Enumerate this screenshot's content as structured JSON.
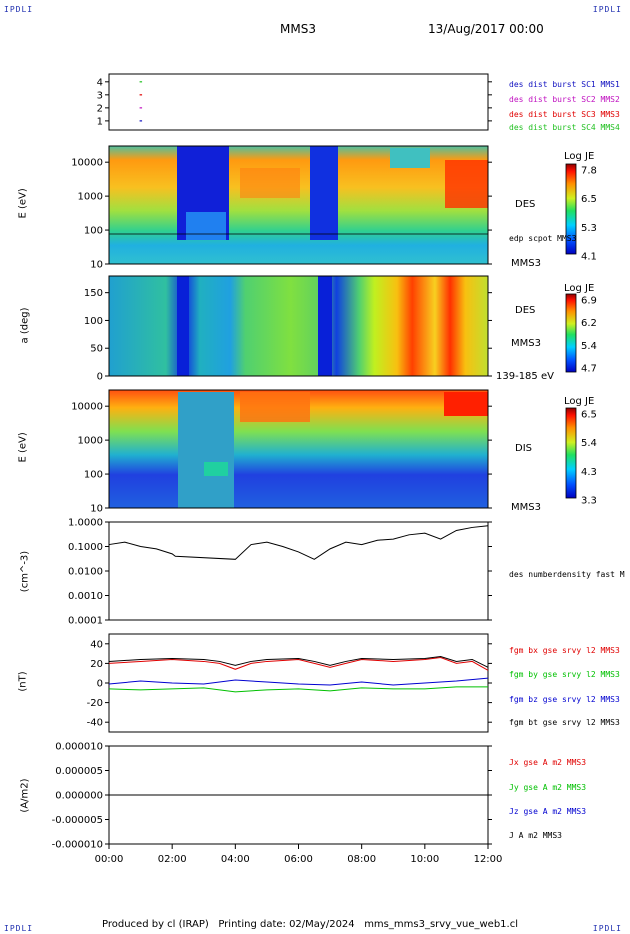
{
  "corners": {
    "top_left": "IPDLI",
    "top_right": "IPDLI",
    "bottom_left": "IPDLI",
    "bottom_right": "IPDLI"
  },
  "header": {
    "spacecraft": "MMS3",
    "datetime": "13/Aug/2017 00:00"
  },
  "footer": {
    "text": "Produced by cl (IRAP)   Printing date: 02/May/2024   mms_mms3_srvy_vue_web1.cl"
  },
  "colors": {
    "mms1": "#1010c0",
    "mms2": "#c010c0",
    "mms3": "#e00000",
    "mms4": "#20c020",
    "bx": "#e00000",
    "by": "#00c000",
    "bz": "#0000d0",
    "bt": "#000000"
  },
  "chart_data": [
    {
      "type": "scatter",
      "name": "burst availability",
      "x_ticks": [
        "00:00",
        "02:00",
        "04:00",
        "06:00",
        "08:00",
        "10:00",
        "12:00"
      ],
      "y_ticks": [
        "4",
        "3",
        "2",
        "1"
      ],
      "legend": [
        {
          "label": "des dist burst SC1 MMS1",
          "color": "#1010c0"
        },
        {
          "label": "des dist burst SC2 MMS2",
          "color": "#c010c0"
        },
        {
          "label": "des dist burst SC3 MMS3",
          "color": "#e00000"
        },
        {
          "label": "des dist burst SC4 MMS4",
          "color": "#20c020"
        }
      ],
      "points": [
        {
          "x": 1.0,
          "y": 4,
          "series": "MMS4"
        },
        {
          "x": 1.0,
          "y": 3,
          "series": "MMS3"
        },
        {
          "x": 1.0,
          "y": 2,
          "series": "MMS2"
        },
        {
          "x": 1.0,
          "y": 1,
          "series": "MMS1"
        }
      ]
    },
    {
      "type": "heatmap",
      "ylabel": "E (eV)",
      "y_ticks": [
        "10000",
        "1000",
        "100",
        "10"
      ],
      "instrument": "DES",
      "spacecraft": "MMS3",
      "overlay_label": "edp scpot MMS3",
      "colorbar": {
        "title": "Log JE",
        "ticks": [
          "7.8",
          "6.5",
          "5.3",
          "4.1"
        ]
      }
    },
    {
      "type": "heatmap",
      "ylabel": "a (deg)",
      "y_ticks": [
        "150",
        "100",
        "50",
        "0"
      ],
      "instrument": "DES",
      "spacecraft": "MMS3",
      "energy_range": "139-185 eV",
      "colorbar": {
        "title": "Log JE",
        "ticks": [
          "6.9",
          "6.2",
          "5.4",
          "4.7"
        ]
      }
    },
    {
      "type": "heatmap",
      "ylabel": "E (eV)",
      "y_ticks": [
        "10000",
        "1000",
        "100",
        "10"
      ],
      "instrument": "DIS",
      "spacecraft": "MMS3",
      "colorbar": {
        "title": "Log JE",
        "ticks": [
          "6.5",
          "5.4",
          "4.3",
          "3.3"
        ]
      }
    },
    {
      "type": "line",
      "ylabel": "(cm^-3)",
      "y_ticks": [
        "1.0000",
        "0.1000",
        "0.0100",
        "0.0010",
        "0.0001"
      ],
      "legend": [
        {
          "label": "des numberdensity fast M",
          "color": "#000000"
        }
      ],
      "series": [
        {
          "name": "des numberdensity fast M",
          "points": [
            [
              0.0,
              0.12
            ],
            [
              0.5,
              0.15
            ],
            [
              1.0,
              0.1
            ],
            [
              1.5,
              0.08
            ],
            [
              2.0,
              0.05
            ],
            [
              2.1,
              0.04
            ],
            [
              4.0,
              0.03
            ],
            [
              4.5,
              0.12
            ],
            [
              5.0,
              0.15
            ],
            [
              5.5,
              0.1
            ],
            [
              6.0,
              0.06
            ],
            [
              6.5,
              0.03
            ],
            [
              7.0,
              0.08
            ],
            [
              7.5,
              0.15
            ],
            [
              8.0,
              0.12
            ],
            [
              8.5,
              0.18
            ],
            [
              9.0,
              0.2
            ],
            [
              9.5,
              0.3
            ],
            [
              10.0,
              0.35
            ],
            [
              10.5,
              0.2
            ],
            [
              11.0,
              0.45
            ],
            [
              11.5,
              0.6
            ],
            [
              12.0,
              0.7
            ]
          ]
        }
      ]
    },
    {
      "type": "line",
      "ylabel": "(nT)",
      "y_ticks": [
        "40",
        "20",
        "0",
        "-20",
        "-40"
      ],
      "legend": [
        {
          "label": "fgm bx gse srvy l2 MMS3",
          "color": "#e00000"
        },
        {
          "label": "fgm by gse srvy l2 MMS3",
          "color": "#00c000"
        },
        {
          "label": "fgm bz gse srvy l2 MMS3",
          "color": "#0000d0"
        },
        {
          "label": "fgm bt gse srvy l2 MMS3",
          "color": "#000000"
        }
      ],
      "series": [
        {
          "name": "fgm bx gse srvy l2 MMS3",
          "points": [
            [
              0,
              20
            ],
            [
              1,
              22
            ],
            [
              2,
              24
            ],
            [
              3,
              22
            ],
            [
              3.5,
              20
            ],
            [
              4,
              14
            ],
            [
              4.5,
              20
            ],
            [
              5,
              22
            ],
            [
              6,
              24
            ],
            [
              6.5,
              20
            ],
            [
              7,
              16
            ],
            [
              7.5,
              20
            ],
            [
              8,
              24
            ],
            [
              9,
              22
            ],
            [
              10,
              24
            ],
            [
              10.5,
              26
            ],
            [
              11,
              20
            ],
            [
              11.5,
              22
            ],
            [
              12,
              13
            ]
          ]
        },
        {
          "name": "fgm by gse srvy l2 MMS3",
          "points": [
            [
              0,
              -6
            ],
            [
              1,
              -7
            ],
            [
              2,
              -6
            ],
            [
              3,
              -5
            ],
            [
              4,
              -9
            ],
            [
              5,
              -7
            ],
            [
              6,
              -6
            ],
            [
              7,
              -8
            ],
            [
              8,
              -5
            ],
            [
              9,
              -6
            ],
            [
              10,
              -6
            ],
            [
              11,
              -4
            ],
            [
              12,
              -4
            ]
          ]
        },
        {
          "name": "fgm bz gse srvy l2 MMS3",
          "points": [
            [
              0,
              -1
            ],
            [
              1,
              2
            ],
            [
              2,
              0
            ],
            [
              3,
              -1
            ],
            [
              4,
              3
            ],
            [
              5,
              1
            ],
            [
              6,
              -1
            ],
            [
              7,
              -2
            ],
            [
              8,
              1
            ],
            [
              9,
              -2
            ],
            [
              10,
              0
            ],
            [
              11,
              2
            ],
            [
              12,
              5
            ]
          ]
        },
        {
          "name": "fgm bt gse srvy l2 MMS3",
          "points": [
            [
              0,
              22
            ],
            [
              1,
              24
            ],
            [
              2,
              25
            ],
            [
              3,
              24
            ],
            [
              3.5,
              22
            ],
            [
              4,
              18
            ],
            [
              4.5,
              22
            ],
            [
              5,
              24
            ],
            [
              6,
              25
            ],
            [
              6.5,
              22
            ],
            [
              7,
              18
            ],
            [
              7.5,
              22
            ],
            [
              8,
              25
            ],
            [
              9,
              24
            ],
            [
              10,
              25
            ],
            [
              10.5,
              27
            ],
            [
              11,
              22
            ],
            [
              11.5,
              24
            ],
            [
              12,
              16
            ]
          ]
        }
      ]
    },
    {
      "type": "line",
      "ylabel": "(A/m2)",
      "y_ticks": [
        "0.000010",
        "0.000005",
        "0.000000",
        "-0.000005",
        "-0.000010"
      ],
      "legend": [
        {
          "label": "Jx gse A m2 MMS3",
          "color": "#e00000"
        },
        {
          "label": "Jy gse A m2 MMS3",
          "color": "#00c000"
        },
        {
          "label": "Jz gse A m2 MMS3",
          "color": "#0000d0"
        },
        {
          "label": "J A m2 MMS3",
          "color": "#000000"
        }
      ],
      "series": [
        {
          "name": "J A m2 MMS3",
          "points": [
            [
              0,
              0
            ],
            [
              12,
              0
            ]
          ]
        }
      ]
    }
  ],
  "x_axis": {
    "ticks": [
      "00:00",
      "02:00",
      "04:00",
      "06:00",
      "08:00",
      "10:00",
      "12:00"
    ],
    "min": 0,
    "max": 12
  }
}
